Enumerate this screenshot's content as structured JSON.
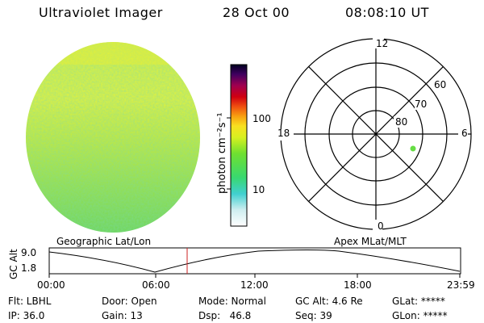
{
  "header": {
    "title": "Ultraviolet Imager",
    "date": "28 Oct 00",
    "time": "08:08:10 UT"
  },
  "colorbar": {
    "unit_label": "photon cm⁻²s⁻¹",
    "tick_100": "100",
    "tick_10": "10"
  },
  "polar": {
    "mlt_top": "12",
    "mlt_bottom": "0",
    "mlt_left": "18",
    "mlt_right": "6",
    "lat_60": "60",
    "lat_70": "70",
    "lat_80": "80",
    "point_color": "#66dd44"
  },
  "labels": {
    "geo": "Geographic Lat/Lon",
    "apex": "Apex MLat/MLT",
    "gc_alt": "GC Alt",
    "alt_max": "9.0",
    "alt_min": "1.8"
  },
  "timeline": {
    "ticks": [
      "00:00",
      "06:00",
      "12:00",
      "18:00",
      "23:59"
    ],
    "current_marker_color": "#cc2222"
  },
  "info": {
    "flt": "Flt: LBHL",
    "ip": "IP: 36.0",
    "door": "Door: Open",
    "gain": "Gain: 13",
    "mode": "Mode: Normal",
    "dsp": "Dsp:   46.8",
    "gcalt": "GC Alt: 4.6 Re",
    "seq": "Seq: 39",
    "glat": "GLat: *****",
    "glon": "GLon: *****"
  }
}
